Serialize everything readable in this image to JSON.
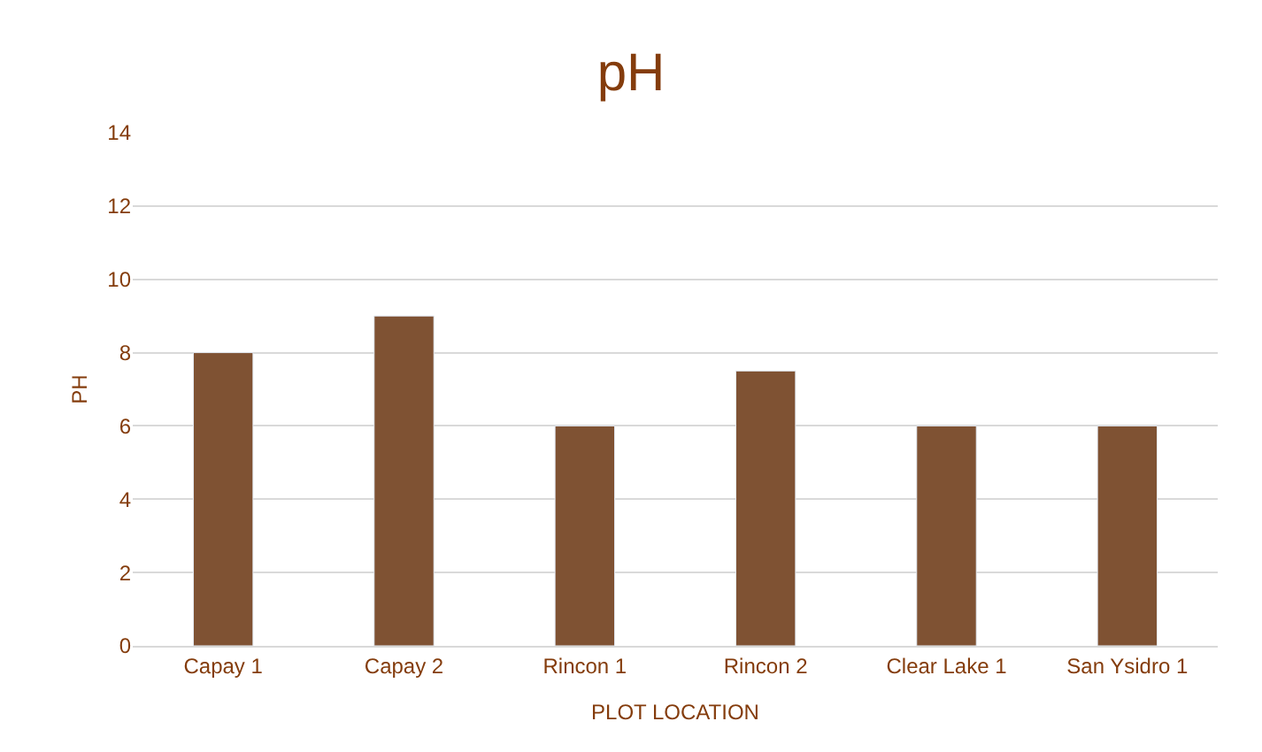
{
  "chart_data": {
    "type": "bar",
    "title": "pH",
    "xlabel": "PLOT LOCATION",
    "ylabel": "PH",
    "categories": [
      "Capay 1",
      "Capay 2",
      "Rincon 1",
      "Rincon 2",
      "Clear Lake 1",
      "San Ysidro 1"
    ],
    "values": [
      8,
      9,
      6,
      7.5,
      6,
      6
    ],
    "color": "#7f5233",
    "ylim": [
      0,
      14
    ],
    "yticks": [
      0,
      2,
      4,
      6,
      8,
      10,
      12,
      14
    ],
    "grid": "y"
  }
}
